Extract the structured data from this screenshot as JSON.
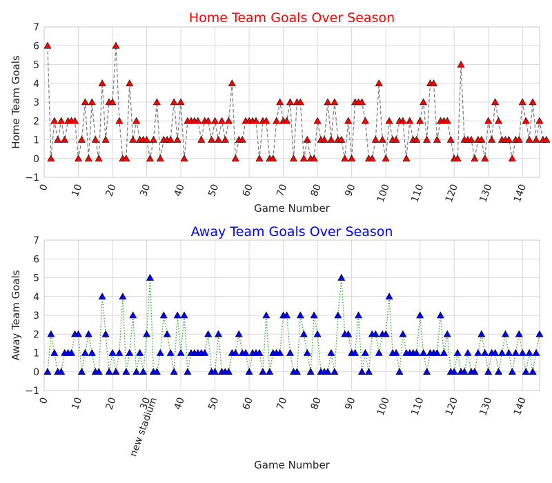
{
  "chart_data": [
    {
      "type": "line",
      "title": "Home Team Goals Over Season",
      "title_color": "#ff0000",
      "xlabel": "Game Number",
      "ylabel": "Home Team Goals",
      "xlim": [
        0,
        145
      ],
      "ylim": [
        -1,
        7
      ],
      "xticks": [
        0,
        10,
        20,
        30,
        40,
        50,
        60,
        70,
        80,
        90,
        100,
        110,
        120,
        130,
        140
      ],
      "xtick_labels": [
        "0",
        "10",
        "20",
        "30",
        "40",
        "50",
        "60",
        "70",
        "80",
        "90",
        "100",
        "110",
        "120",
        "130",
        "140"
      ],
      "yticks": [
        -1,
        0,
        1,
        2,
        3,
        4,
        5,
        6,
        7
      ],
      "ytick_labels": [
        "−1",
        "0",
        "1",
        "2",
        "3",
        "4",
        "5",
        "6",
        "7"
      ],
      "grid": true,
      "line_style": "dashed",
      "line_color": "#808080",
      "marker": "triangle-up",
      "marker_color": "#ff0000",
      "x_start": 1,
      "values": [
        6,
        0,
        2,
        1,
        2,
        1,
        2,
        2,
        2,
        0,
        1,
        3,
        0,
        3,
        1,
        0,
        4,
        1,
        3,
        3,
        6,
        2,
        0,
        0,
        4,
        1,
        2,
        1,
        1,
        1,
        0,
        1,
        3,
        0,
        1,
        1,
        1,
        3,
        1,
        3,
        0,
        2,
        2,
        2,
        2,
        1,
        2,
        2,
        1,
        2,
        1,
        2,
        1,
        2,
        4,
        0,
        1,
        1,
        2,
        2,
        2,
        2,
        0,
        2,
        2,
        0,
        0,
        2,
        3,
        2,
        2,
        3,
        0,
        3,
        3,
        0,
        1,
        0,
        0,
        2,
        1,
        1,
        3,
        1,
        3,
        1,
        1,
        0,
        2,
        0,
        3,
        3,
        3,
        2,
        0,
        0,
        1,
        4,
        1,
        0,
        2,
        1,
        1,
        2,
        2,
        0,
        2,
        1,
        1,
        2,
        3,
        1,
        4,
        4,
        1,
        2,
        2,
        2,
        1,
        0,
        0,
        5,
        1,
        1,
        1,
        0,
        1,
        1,
        0,
        2,
        1,
        3,
        2,
        1,
        1,
        1,
        0,
        1,
        1,
        3,
        2,
        1,
        3,
        1,
        2,
        1,
        1
      ],
      "annotations": []
    },
    {
      "type": "line",
      "title": "Away Team Goals Over Season",
      "title_color": "#0000ff",
      "xlabel": "Game Number",
      "ylabel": "Away Team Goals",
      "xlim": [
        0,
        145
      ],
      "ylim": [
        -1,
        7
      ],
      "xticks": [
        0,
        10,
        20,
        30,
        40,
        50,
        60,
        70,
        80,
        90,
        100,
        110,
        120,
        130,
        140
      ],
      "xtick_labels": [
        "0",
        "10",
        "20",
        "30",
        "40",
        "50",
        "60",
        "70",
        "80",
        "90",
        "100",
        "110",
        "120",
        "130",
        "140"
      ],
      "yticks": [
        -1,
        0,
        1,
        2,
        3,
        4,
        5,
        6,
        7
      ],
      "ytick_labels": [
        "−1",
        "0",
        "1",
        "2",
        "3",
        "4",
        "5",
        "6",
        "7"
      ],
      "grid": true,
      "line_style": "dotted",
      "line_color": "#2ca02c",
      "marker": "triangle-up",
      "marker_color": "#0000ff",
      "x_start": 1,
      "values": [
        0,
        2,
        1,
        0,
        0,
        1,
        1,
        1,
        2,
        2,
        0,
        1,
        2,
        1,
        0,
        0,
        4,
        2,
        0,
        1,
        0,
        1,
        4,
        0,
        1,
        3,
        0,
        1,
        0,
        2,
        5,
        0,
        0,
        1,
        3,
        2,
        1,
        0,
        3,
        1,
        3,
        0,
        1,
        1,
        1,
        1,
        1,
        2,
        0,
        0,
        2,
        0,
        0,
        0,
        1,
        1,
        2,
        1,
        1,
        0,
        1,
        1,
        1,
        0,
        3,
        0,
        1,
        1,
        1,
        3,
        3,
        1,
        0,
        0,
        3,
        2,
        1,
        0,
        3,
        2,
        0,
        0,
        0,
        1,
        0,
        3,
        5,
        2,
        2,
        1,
        1,
        3,
        0,
        1,
        0,
        2,
        2,
        1,
        2,
        2,
        4,
        1,
        1,
        0,
        2,
        1,
        1,
        1,
        1,
        3,
        1,
        0,
        1,
        1,
        1,
        3,
        1,
        2,
        0,
        0,
        1,
        0,
        0,
        1,
        0,
        0,
        1,
        2,
        1,
        0,
        1,
        1,
        0,
        1,
        2,
        1,
        0,
        1,
        2,
        1,
        0,
        1,
        0,
        1,
        2
      ],
      "annotations": [
        {
          "x": 32,
          "text": "new stadium"
        }
      ]
    }
  ]
}
